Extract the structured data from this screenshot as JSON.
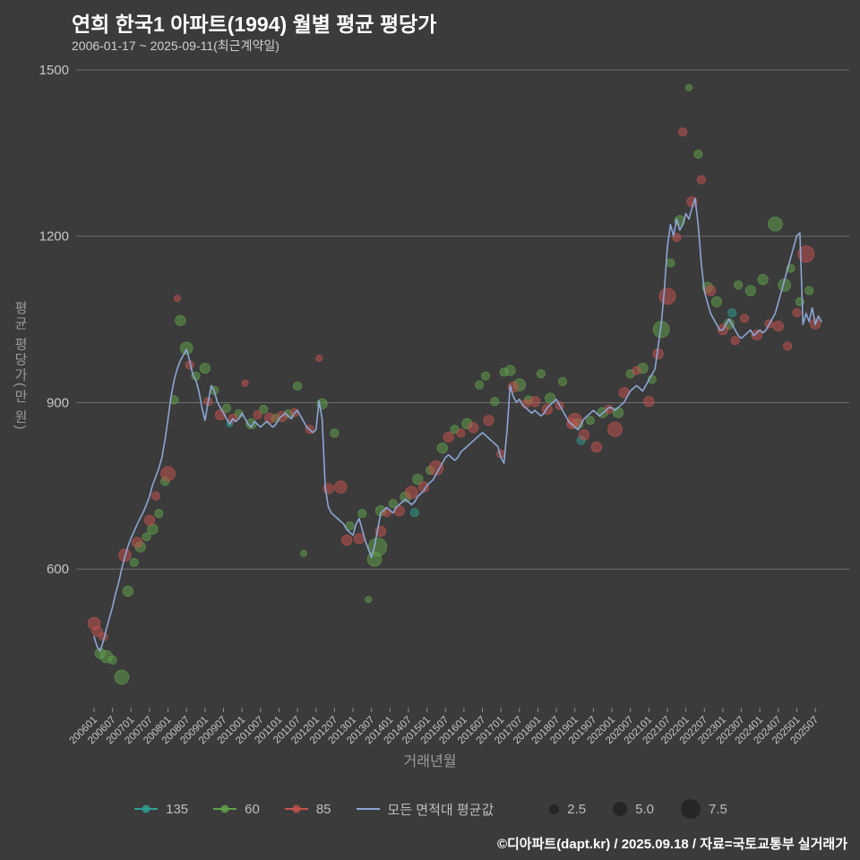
{
  "header": {
    "title": "연희 한국1 아파트(1994) 월별 평균 평당가",
    "subtitle": "2006-01-17 ~ 2025-09-11(최근계약일)"
  },
  "footer": {
    "credit": "©디아파트(dapt.kr) / 2025.09.18 / 자료=국토교통부 실거래가"
  },
  "colors": {
    "background": "#3b3b3b",
    "grid": "#6e6e6e",
    "axis_text": "#c6c6c6",
    "muted_text": "#9a9a9a",
    "line": "#8da6d6",
    "size_legend_fill": "#262626"
  },
  "chart_data": {
    "type": "scatter",
    "title": "연희 한국1 아파트(1994) 월별 평균 평당가",
    "subtitle": "2006-01-17 ~ 2025-09-11(최근계약일)",
    "xlabel": "거래년월",
    "ylabel": "평균 평당가(만 원)",
    "x_start_month": "2006-01",
    "months_span": 237,
    "ylim": [
      350,
      1500
    ],
    "yticks": [
      600,
      900,
      1200,
      1500
    ],
    "xtick_step_months": 6,
    "xtick_labels": [
      "200601",
      "200607",
      "200701",
      "200707",
      "200801",
      "200807",
      "200901",
      "200907",
      "201001",
      "201007",
      "201101",
      "201107",
      "201201",
      "201207",
      "201301",
      "201307",
      "201401",
      "201407",
      "201501",
      "201507",
      "201601",
      "201607",
      "201701",
      "201707",
      "201801",
      "201807",
      "201901",
      "201907",
      "202001",
      "202007",
      "202101",
      "202107",
      "202201",
      "202207",
      "202301",
      "202307",
      "202401",
      "202407",
      "202501",
      "202507"
    ],
    "grid": true,
    "legend_position": "bottom",
    "size_legend": [
      "2.5",
      "5.0",
      "7.5"
    ],
    "line_series": {
      "name": "모든 면적대 평균값",
      "values": [
        478,
        460,
        452,
        470,
        492,
        512,
        532,
        556,
        576,
        601,
        622,
        641,
        656,
        668,
        681,
        692,
        703,
        716,
        731,
        752,
        766,
        781,
        801,
        832,
        871,
        912,
        941,
        961,
        976,
        986,
        996,
        976,
        951,
        941,
        921,
        891,
        868,
        901,
        931,
        921,
        901,
        891,
        881,
        871,
        861,
        871,
        866,
        871,
        881,
        871,
        861,
        856,
        866,
        861,
        856,
        861,
        866,
        861,
        856,
        861,
        871,
        876,
        881,
        876,
        871,
        881,
        886,
        876,
        866,
        856,
        851,
        846,
        851,
        903,
        871,
        748,
        712,
        701,
        696,
        691,
        686,
        681,
        671,
        666,
        661,
        681,
        691,
        671,
        651,
        636,
        621,
        641,
        671,
        701,
        706,
        711,
        706,
        701,
        711,
        716,
        721,
        726,
        721,
        716,
        721,
        731,
        736,
        741,
        751,
        756,
        761,
        771,
        781,
        791,
        801,
        806,
        801,
        796,
        801,
        811,
        816,
        821,
        826,
        831,
        836,
        841,
        846,
        841,
        836,
        831,
        826,
        821,
        801,
        791,
        851,
        931,
        911,
        901,
        906,
        896,
        891,
        886,
        881,
        886,
        881,
        876,
        881,
        891,
        896,
        901,
        906,
        896,
        886,
        876,
        866,
        861,
        856,
        851,
        861,
        871,
        876,
        881,
        886,
        881,
        876,
        881,
        886,
        891,
        891,
        886,
        891,
        896,
        901,
        911,
        921,
        926,
        931,
        926,
        921,
        931,
        941,
        951,
        961,
        1001,
        1041,
        1101,
        1181,
        1221,
        1201,
        1231,
        1211,
        1221,
        1241,
        1231,
        1251,
        1268,
        1221,
        1151,
        1101,
        1081,
        1061,
        1051,
        1041,
        1031,
        1031,
        1041,
        1051,
        1041,
        1031,
        1021,
        1016,
        1021,
        1026,
        1031,
        1021,
        1026,
        1031,
        1026,
        1031,
        1041,
        1051,
        1061,
        1081,
        1101,
        1121,
        1141,
        1161,
        1181,
        1201,
        1206,
        1041,
        1061,
        1046,
        1071,
        1041,
        1056,
        1046
      ]
    },
    "bubble_series": [
      {
        "name": "135",
        "color": "#2f9e8f",
        "points": [
          [
            44,
            862,
            1
          ],
          [
            104,
            702,
            2
          ],
          [
            158,
            832,
            2
          ],
          [
            207,
            1062,
            2
          ]
        ]
      },
      {
        "name": "60",
        "color": "#62a14b",
        "points": [
          [
            2,
            448,
            3
          ],
          [
            4,
            442,
            4
          ],
          [
            6,
            436,
            2
          ],
          [
            9,
            405,
            5
          ],
          [
            11,
            560,
            3
          ],
          [
            13,
            612,
            2
          ],
          [
            15,
            640,
            3
          ],
          [
            17,
            658,
            2
          ],
          [
            19,
            672,
            3
          ],
          [
            21,
            700,
            2
          ],
          [
            23,
            758,
            2
          ],
          [
            26,
            905,
            2
          ],
          [
            28,
            1048,
            3
          ],
          [
            30,
            998,
            4
          ],
          [
            33,
            948,
            2
          ],
          [
            36,
            962,
            3
          ],
          [
            39,
            922,
            2
          ],
          [
            43,
            890,
            2
          ],
          [
            47,
            880,
            2
          ],
          [
            51,
            862,
            3
          ],
          [
            55,
            888,
            2
          ],
          [
            59,
            872,
            2
          ],
          [
            63,
            880,
            2
          ],
          [
            66,
            930,
            2
          ],
          [
            68,
            628,
            1
          ],
          [
            74,
            898,
            3
          ],
          [
            78,
            845,
            2
          ],
          [
            83,
            678,
            2
          ],
          [
            87,
            700,
            2
          ],
          [
            89,
            545,
            1
          ],
          [
            92,
            640,
            7
          ],
          [
            91,
            618,
            5
          ],
          [
            93,
            705,
            3
          ],
          [
            97,
            718,
            2
          ],
          [
            101,
            730,
            3
          ],
          [
            105,
            762,
            3
          ],
          [
            109,
            778,
            2
          ],
          [
            113,
            818,
            3
          ],
          [
            117,
            852,
            2
          ],
          [
            121,
            862,
            3
          ],
          [
            125,
            932,
            2
          ],
          [
            127,
            948,
            2
          ],
          [
            130,
            902,
            2
          ],
          [
            133,
            955,
            2
          ],
          [
            135,
            958,
            3
          ],
          [
            138,
            932,
            4
          ],
          [
            141,
            905,
            2
          ],
          [
            145,
            952,
            2
          ],
          [
            148,
            908,
            3
          ],
          [
            152,
            938,
            2
          ],
          [
            157,
            862,
            3
          ],
          [
            161,
            868,
            2
          ],
          [
            165,
            882,
            3
          ],
          [
            170,
            882,
            3
          ],
          [
            174,
            952,
            2
          ],
          [
            178,
            962,
            3
          ],
          [
            181,
            942,
            2
          ],
          [
            184,
            1032,
            6
          ],
          [
            187,
            1152,
            2
          ],
          [
            190,
            1228,
            3
          ],
          [
            193,
            1468,
            1
          ],
          [
            196,
            1348,
            2
          ],
          [
            199,
            1108,
            3
          ],
          [
            202,
            1082,
            3
          ],
          [
            206,
            1042,
            3
          ],
          [
            209,
            1112,
            2
          ],
          [
            213,
            1102,
            3
          ],
          [
            217,
            1122,
            3
          ],
          [
            221,
            1222,
            5
          ],
          [
            224,
            1112,
            4
          ],
          [
            226,
            1142,
            2
          ],
          [
            229,
            1082,
            2
          ],
          [
            232,
            1102,
            2
          ]
        ]
      },
      {
        "name": "85",
        "color": "#c4534e",
        "points": [
          [
            0,
            502,
            4
          ],
          [
            1,
            488,
            3
          ],
          [
            3,
            478,
            2
          ],
          [
            10,
            625,
            4
          ],
          [
            14,
            648,
            3
          ],
          [
            18,
            688,
            3
          ],
          [
            20,
            732,
            2
          ],
          [
            24,
            772,
            5
          ],
          [
            27,
            1088,
            1
          ],
          [
            31,
            968,
            2
          ],
          [
            37,
            902,
            2
          ],
          [
            41,
            878,
            3
          ],
          [
            45,
            872,
            2
          ],
          [
            49,
            935,
            1
          ],
          [
            53,
            878,
            2
          ],
          [
            57,
            872,
            3
          ],
          [
            61,
            875,
            3
          ],
          [
            65,
            882,
            2
          ],
          [
            70,
            852,
            2
          ],
          [
            73,
            980,
            1
          ],
          [
            76,
            745,
            3
          ],
          [
            80,
            748,
            4
          ],
          [
            82,
            652,
            3
          ],
          [
            86,
            655,
            3
          ],
          [
            93,
            668,
            3
          ],
          [
            95,
            702,
            2
          ],
          [
            99,
            705,
            3
          ],
          [
            103,
            738,
            4
          ],
          [
            107,
            748,
            3
          ],
          [
            111,
            782,
            5
          ],
          [
            115,
            838,
            3
          ],
          [
            119,
            845,
            2
          ],
          [
            123,
            855,
            3
          ],
          [
            128,
            868,
            3
          ],
          [
            132,
            808,
            2
          ],
          [
            136,
            928,
            3
          ],
          [
            140,
            898,
            2
          ],
          [
            143,
            902,
            3
          ],
          [
            147,
            888,
            3
          ],
          [
            151,
            895,
            2
          ],
          [
            155,
            862,
            3
          ],
          [
            156,
            868,
            5
          ],
          [
            159,
            842,
            3
          ],
          [
            163,
            820,
            3
          ],
          [
            167,
            888,
            2
          ],
          [
            169,
            852,
            5
          ],
          [
            172,
            918,
            3
          ],
          [
            176,
            958,
            2
          ],
          [
            180,
            902,
            3
          ],
          [
            183,
            988,
            3
          ],
          [
            186,
            1092,
            6
          ],
          [
            189,
            1198,
            2
          ],
          [
            191,
            1388,
            2
          ],
          [
            194,
            1262,
            3
          ],
          [
            197,
            1302,
            2
          ],
          [
            200,
            1102,
            3
          ],
          [
            204,
            1032,
            3
          ],
          [
            208,
            1012,
            2
          ],
          [
            211,
            1052,
            2
          ],
          [
            215,
            1022,
            3
          ],
          [
            219,
            1042,
            2
          ],
          [
            222,
            1038,
            3
          ],
          [
            225,
            1002,
            2
          ],
          [
            228,
            1062,
            2
          ],
          [
            231,
            1168,
            6
          ],
          [
            234,
            1042,
            3
          ]
        ]
      }
    ]
  }
}
